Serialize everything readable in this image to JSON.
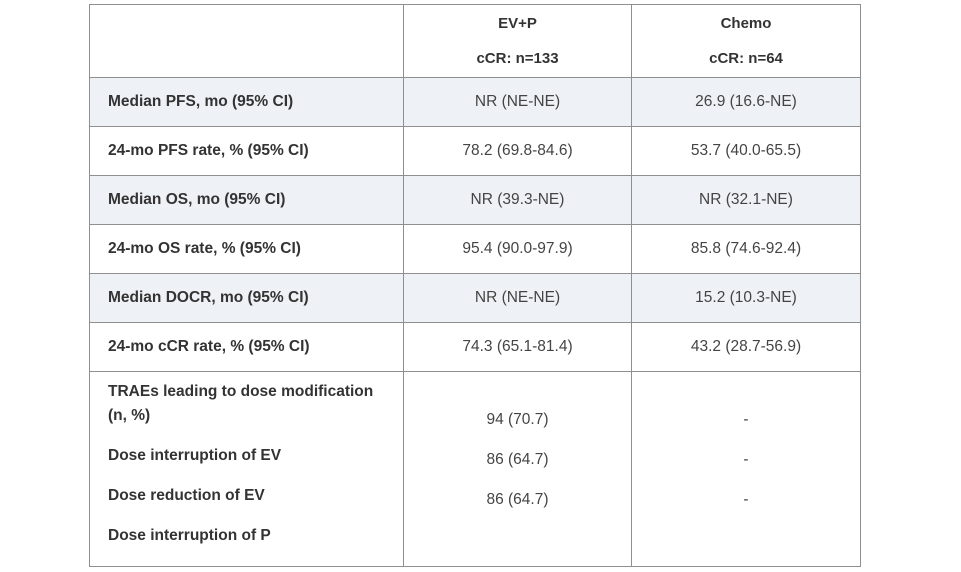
{
  "header": {
    "col2_line1": "EV+P",
    "col2_line2": "cCR: n=133",
    "col3_line1": "Chemo",
    "col3_line2": "cCR: n=64"
  },
  "rows": [
    {
      "label": "Median PFS, mo (95% CI)",
      "ev": "NR (NE-NE)",
      "chemo": "26.9 (16.6-NE)"
    },
    {
      "label": "24-mo PFS rate, % (95% CI)",
      "ev": "78.2 (69.8-84.6)",
      "chemo": "53.7 (40.0-65.5)"
    },
    {
      "label": "Median OS, mo (95% CI)",
      "ev": "NR (39.3-NE)",
      "chemo": "NR (32.1-NE)"
    },
    {
      "label": "24-mo OS rate, % (95% CI)",
      "ev": "95.4 (90.0-97.9)",
      "chemo": "85.8 (74.6-92.4)"
    },
    {
      "label": "Median DOCR, mo (95% CI)",
      "ev": "NR (NE-NE)",
      "chemo": "15.2 (10.3-NE)"
    },
    {
      "label": "24-mo cCR rate, % (95% CI)",
      "ev": "74.3 (65.1-81.4)",
      "chemo": "43.2 (28.7-56.9)"
    }
  ],
  "trae": {
    "label_line1": "TRAEs leading to dose modification",
    "label_line2": "(n, %)",
    "sub_labels": [
      "Dose interruption of EV",
      "Dose reduction of EV",
      "Dose interruption of P"
    ],
    "ev_values": [
      "94 (70.7)",
      "86 (64.7)",
      "86 (64.7)"
    ],
    "chemo_values": [
      "-",
      "-",
      "-"
    ]
  }
}
